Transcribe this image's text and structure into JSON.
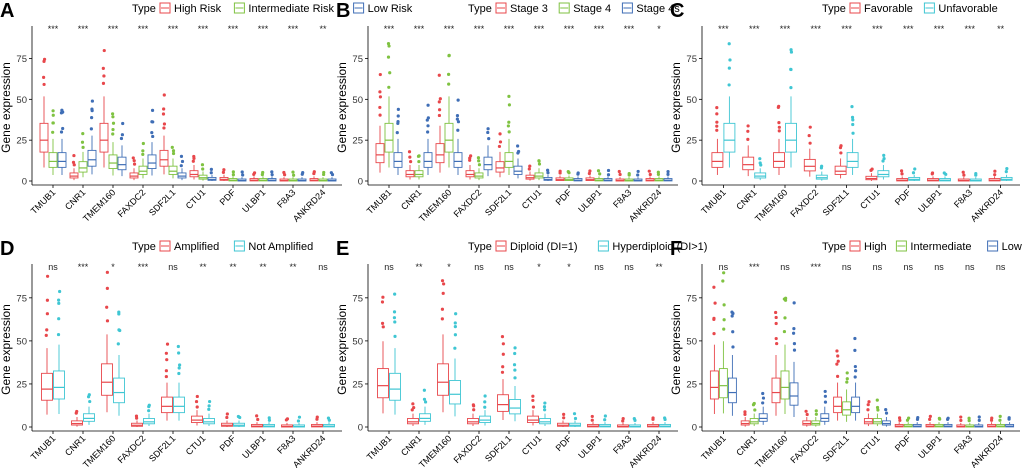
{
  "colors": {
    "red": "#e8474b",
    "green": "#7fc241",
    "blue": "#3f6eb6",
    "cyan": "#3fc6d3"
  },
  "chart_data": [
    {
      "type": "boxplot",
      "panel": "A",
      "ylabel": "Gene expression",
      "legend_title": "Type",
      "ylim": [
        0,
        90
      ],
      "yticks": [
        0,
        25,
        50,
        75
      ],
      "series": [
        {
          "name": "High Risk",
          "color": "#e8474b"
        },
        {
          "name": "Intermediate Risk",
          "color": "#7fc241"
        },
        {
          "name": "Low Risk",
          "color": "#3f6eb6"
        }
      ],
      "categories": [
        "TMUB1",
        "CNR1",
        "TMEM160",
        "FAXDC2",
        "SDF2L1",
        "CTU1",
        "PDF",
        "ULBP1",
        "F8A3",
        "ANKRD24"
      ],
      "significance": [
        "***",
        "***",
        "***",
        "***",
        "***",
        "***",
        "***",
        "***",
        "***",
        "**"
      ],
      "medians": [
        [
          25,
          12,
          12
        ],
        [
          3,
          8,
          13
        ],
        [
          25,
          11,
          10
        ],
        [
          3,
          6,
          11
        ],
        [
          13,
          6,
          3
        ],
        [
          4,
          2,
          1
        ],
        [
          1,
          0.5,
          0.3
        ],
        [
          0.5,
          0.5,
          0.5
        ],
        [
          0.3,
          0.3,
          0.3
        ],
        [
          0.5,
          0.3,
          0.3
        ]
      ]
    },
    {
      "type": "boxplot",
      "panel": "B",
      "ylabel": "Gene expression",
      "legend_title": "Type",
      "ylim": [
        0,
        90
      ],
      "yticks": [
        0,
        25,
        50,
        75
      ],
      "series": [
        {
          "name": "Stage 3",
          "color": "#e8474b"
        },
        {
          "name": "Stage 4",
          "color": "#7fc241"
        },
        {
          "name": "Stage 4s",
          "color": "#3f6eb6"
        }
      ],
      "categories": [
        "TMUB1",
        "CNR1",
        "TMEM160",
        "FAXDC2",
        "SDF2L1",
        "CTU1",
        "PDF",
        "ULBP1",
        "F8A3",
        "ANKRD24"
      ],
      "significance": [
        "***",
        "***",
        "***",
        "***",
        "***",
        "***",
        "***",
        "***",
        "***",
        "*"
      ],
      "medians": [
        [
          16,
          25,
          12
        ],
        [
          4,
          4,
          12
        ],
        [
          16,
          25,
          12
        ],
        [
          4,
          3,
          10
        ],
        [
          8,
          12,
          6
        ],
        [
          2,
          3,
          1
        ],
        [
          0.8,
          0.8,
          0.5
        ],
        [
          0.8,
          0.5,
          0.5
        ],
        [
          0.3,
          0.3,
          0.3
        ],
        [
          0.5,
          0.5,
          0.5
        ]
      ]
    },
    {
      "type": "boxplot",
      "panel": "C",
      "ylabel": "Gene expression",
      "legend_title": "Type",
      "ylim": [
        0,
        90
      ],
      "yticks": [
        0,
        25,
        50,
        75
      ],
      "series": [
        {
          "name": "Favorable",
          "color": "#e8474b"
        },
        {
          "name": "Unfavorable",
          "color": "#3fc6d3"
        }
      ],
      "categories": [
        "TMUB1",
        "CNR1",
        "TMEM160",
        "FAXDC2",
        "SDF2L1",
        "CTU1",
        "PDF",
        "ULBP1",
        "F8A3",
        "ANKRD24"
      ],
      "significance": [
        "***",
        "***",
        "***",
        "***",
        "***",
        "***",
        "***",
        "***",
        "***",
        "**"
      ],
      "medians": [
        [
          12,
          25
        ],
        [
          10,
          3
        ],
        [
          12,
          25
        ],
        [
          9,
          2
        ],
        [
          6,
          12
        ],
        [
          1.5,
          4
        ],
        [
          0.5,
          1
        ],
        [
          0.5,
          0.5
        ],
        [
          0.3,
          0.3
        ],
        [
          0.5,
          1
        ]
      ]
    },
    {
      "type": "boxplot",
      "panel": "D",
      "ylabel": "Gene expression",
      "legend_title": "Type",
      "ylim": [
        0,
        90
      ],
      "yticks": [
        0,
        25,
        50,
        75
      ],
      "series": [
        {
          "name": "Amplified",
          "color": "#e8474b"
        },
        {
          "name": "Not Amplified",
          "color": "#3fc6d3"
        }
      ],
      "categories": [
        "TMUB1",
        "CNR1",
        "TMEM160",
        "FAXDC2",
        "SDF2L1",
        "CTU1",
        "PDF",
        "ULBP1",
        "F8A3",
        "ANKRD24"
      ],
      "significance": [
        "ns",
        "***",
        "*",
        "***",
        "ns",
        "**",
        "**",
        "**",
        "**",
        "ns"
      ],
      "medians": [
        [
          22,
          23
        ],
        [
          2,
          5
        ],
        [
          26,
          20
        ],
        [
          1,
          3
        ],
        [
          12,
          12
        ],
        [
          4,
          3
        ],
        [
          1,
          1
        ],
        [
          0.5,
          0.5
        ],
        [
          0.3,
          0.3
        ],
        [
          0.5,
          0.5
        ]
      ]
    },
    {
      "type": "boxplot",
      "panel": "E",
      "ylabel": "Gene expression",
      "legend_title": "Type",
      "ylim": [
        0,
        90
      ],
      "yticks": [
        0,
        25,
        50,
        75
      ],
      "series": [
        {
          "name": "Diploid (DI=1)",
          "color": "#e8474b"
        },
        {
          "name": "Hyperdiploid (DI>1)",
          "color": "#3fc6d3"
        }
      ],
      "categories": [
        "TMUB1",
        "CNR1",
        "TMEM160",
        "FAXDC2",
        "SDF2L1",
        "CTU1",
        "PDF",
        "ULBP1",
        "F8A3",
        "ANKRD24"
      ],
      "significance": [
        "ns",
        "**",
        "*",
        "ns",
        "ns",
        "*",
        "*",
        "ns",
        "ns",
        "**"
      ],
      "medians": [
        [
          24,
          22
        ],
        [
          3,
          5
        ],
        [
          26,
          19
        ],
        [
          3,
          4
        ],
        [
          13,
          11
        ],
        [
          4,
          3
        ],
        [
          1,
          1
        ],
        [
          0.5,
          0.5
        ],
        [
          0.3,
          0.3
        ],
        [
          0.5,
          0.5
        ]
      ]
    },
    {
      "type": "boxplot",
      "panel": "F",
      "ylabel": "Gene expression",
      "legend_title": "Type",
      "ylim": [
        0,
        90
      ],
      "yticks": [
        0,
        25,
        50,
        75
      ],
      "series": [
        {
          "name": "High",
          "color": "#e8474b"
        },
        {
          "name": "Intermediate",
          "color": "#7fc241"
        },
        {
          "name": "Low",
          "color": "#3f6eb6"
        }
      ],
      "categories": [
        "TMUB1",
        "CNR1",
        "TMEM160",
        "FAXDC2",
        "SDF2L1",
        "CTU1",
        "PDF",
        "ULBP1",
        "F8A3",
        "ANKRD24"
      ],
      "significance": [
        "ns",
        "***",
        "ns",
        "***",
        "ns",
        "ns",
        "ns",
        "ns",
        "ns",
        "ns"
      ],
      "medians": [
        [
          23,
          24,
          20
        ],
        [
          2,
          3,
          5
        ],
        [
          20,
          23,
          18
        ],
        [
          2,
          2,
          5
        ],
        [
          12,
          10,
          12
        ],
        [
          3,
          3,
          2
        ],
        [
          0.5,
          0.5,
          0.5
        ],
        [
          0.5,
          0.5,
          0.5
        ],
        [
          0.3,
          0.3,
          0.3
        ],
        [
          0.5,
          0.5,
          0.5
        ]
      ]
    }
  ]
}
